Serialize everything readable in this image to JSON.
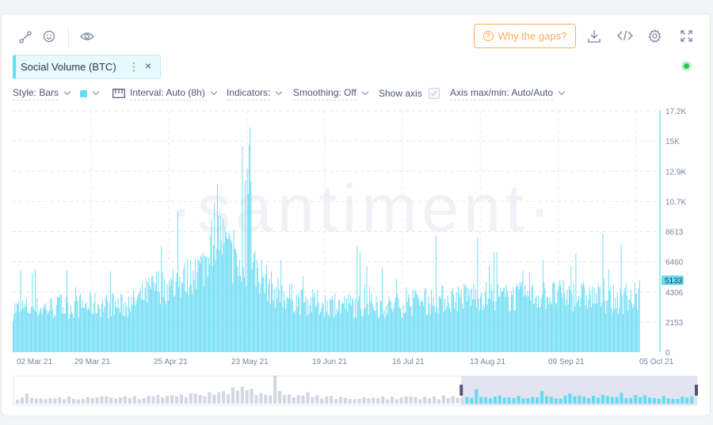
{
  "toolbar": {
    "icons": [
      "line-draw-icon",
      "emoji-icon",
      "eye-icon",
      "download-icon",
      "code-icon",
      "gear-icon",
      "fullscreen-icon"
    ],
    "why_gaps_label": "Why the gaps?"
  },
  "metric": {
    "label": "Social Volume (BTC)",
    "more_glyph": "⋮",
    "close_glyph": "×",
    "status_color": "#26c953"
  },
  "settings": {
    "style": "Style: Bars",
    "color": "#68dbf4",
    "interval": "Interval: Auto (8h)",
    "indicators": "Indicators:",
    "smoothing": "Smoothing: Off",
    "show_axis": "Show axis",
    "axis_minmax": "Axis max/min: Auto/Auto"
  },
  "watermark": "·santiment·",
  "chart_data": {
    "type": "bar",
    "series": [
      {
        "name": "Social Volume (BTC)",
        "color": "#68dbf4"
      }
    ],
    "start_date": "02 Mar 21",
    "end_date": "05 Oct 21",
    "interval": "8h",
    "y_ticks": [
      "17.2K",
      "15K",
      "12.9K",
      "10.7K",
      "8613",
      "6460",
      "4306",
      "2153",
      "0"
    ],
    "ylim": [
      0,
      17226
    ],
    "x_ticks": [
      "02 Mar 21",
      "29 Mar 21",
      "25 Apr 21",
      "23 May 21",
      "19 Jun 21",
      "16 Jul 21",
      "13 Aug 21",
      "09 Sep 21",
      "05 Oct 21"
    ],
    "last_value_label": "5133",
    "grid": true,
    "profile_days": [
      0,
      14,
      28,
      40,
      50,
      55,
      60,
      66,
      70,
      78,
      83,
      90,
      100,
      112,
      130,
      145,
      160,
      170,
      185,
      200,
      210,
      217
    ],
    "profile_values": [
      3100,
      3200,
      3400,
      3300,
      4800,
      4600,
      5300,
      6200,
      9000,
      5800,
      6200,
      4400,
      3600,
      3400,
      3300,
      3700,
      4100,
      3900,
      4100,
      4000,
      3700,
      4000
    ]
  },
  "navigator": {
    "selected_start_fraction": 0.655
  }
}
